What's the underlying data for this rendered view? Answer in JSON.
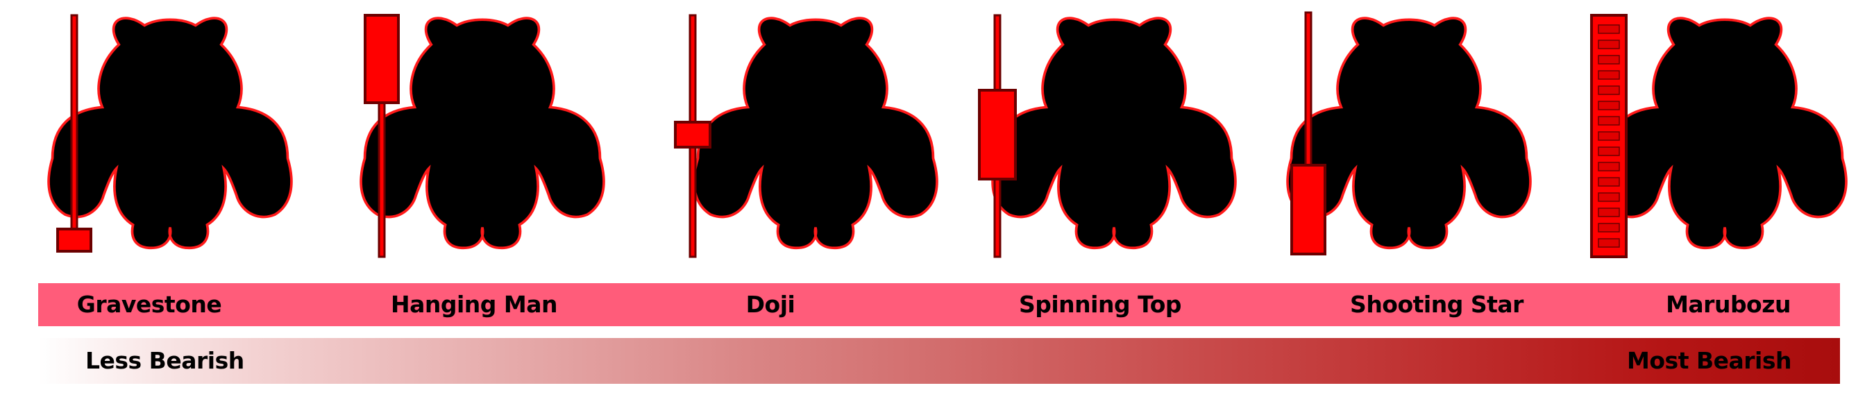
{
  "patterns": [
    {
      "key": "gravestone",
      "label": "Gravestone",
      "candle": "gravestone"
    },
    {
      "key": "hanging-man",
      "label": "Hanging Man",
      "candle": "hanging-man"
    },
    {
      "key": "doji",
      "label": "Doji",
      "candle": "doji"
    },
    {
      "key": "spinning-top",
      "label": "Spinning Top",
      "candle": "spinning-top"
    },
    {
      "key": "shooting-star",
      "label": "Shooting Star",
      "candle": "shooting-star"
    },
    {
      "key": "marubozu",
      "label": "Marubozu",
      "candle": "marubozu"
    }
  ],
  "scale": {
    "low_label": "Less Bearish",
    "high_label": "Most Bearish"
  },
  "colors": {
    "silhouette_fill": "#000000",
    "silhouette_outline": "#ff1a1a",
    "candle_fill": "#ff0000",
    "candle_stroke": "#6b0000",
    "name_band": "#ff5c7a",
    "scale_start": "#ffffff",
    "scale_end": "#a80d0d"
  },
  "icons": {
    "figure": "bear-silhouette-icon",
    "marker": "candlestick-icon"
  }
}
